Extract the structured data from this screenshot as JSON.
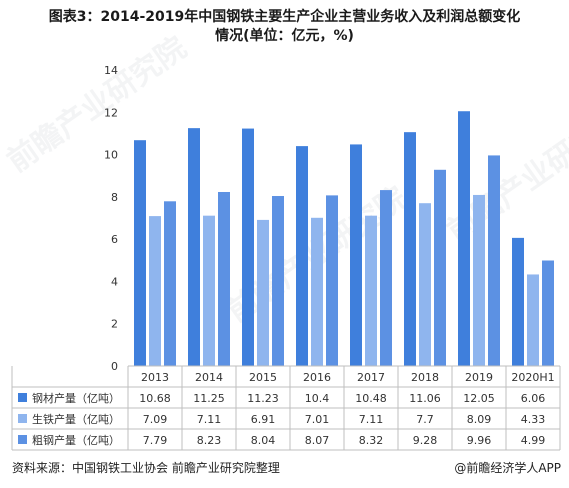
{
  "title_lines": [
    "图表3：2014-2019年中国钢铁主要生产企业主营业务收入及利润总额变化",
    "情况(单位：亿元，%)"
  ],
  "watermark": "前瞻产业研究院",
  "source_text": "资料来源：中国钢铁工业协会 前瞻产业研究院整理",
  "brand_text": "@前瞻经济学人APP",
  "chart_data": {
    "type": "bar",
    "categories": [
      "2013",
      "2014",
      "2015",
      "2016",
      "2017",
      "2018",
      "2019",
      "2020H1"
    ],
    "series": [
      {
        "name": "钢材产量（亿吨）",
        "color": "#3f7fdc",
        "values": [
          10.68,
          11.25,
          11.23,
          10.4,
          10.48,
          11.06,
          12.05,
          6.06
        ],
        "labels": [
          "10.68",
          "11.25",
          "11.23",
          "10.4",
          "10.48",
          "11.06",
          "12.05",
          "6.06"
        ]
      },
      {
        "name": "生铁产量（亿吨）",
        "color": "#8fb5ee",
        "values": [
          7.09,
          7.11,
          6.91,
          7.01,
          7.11,
          7.7,
          8.09,
          4.33
        ],
        "labels": [
          "7.09",
          "7.11",
          "6.91",
          "7.01",
          "7.11",
          "7.7",
          "8.09",
          "4.33"
        ]
      },
      {
        "name": "粗钢产量（亿吨）",
        "color": "#5c91e3",
        "values": [
          7.79,
          8.23,
          8.04,
          8.07,
          8.32,
          9.28,
          9.96,
          4.99
        ],
        "labels": [
          "7.79",
          "8.23",
          "8.04",
          "8.07",
          "8.32",
          "9.28",
          "9.96",
          "4.99"
        ]
      }
    ],
    "ylim": [
      0,
      14
    ],
    "yticks": [
      "0",
      "2",
      "4",
      "6",
      "8",
      "10",
      "12",
      "14"
    ],
    "grid": false,
    "legend": "data-table-below"
  }
}
